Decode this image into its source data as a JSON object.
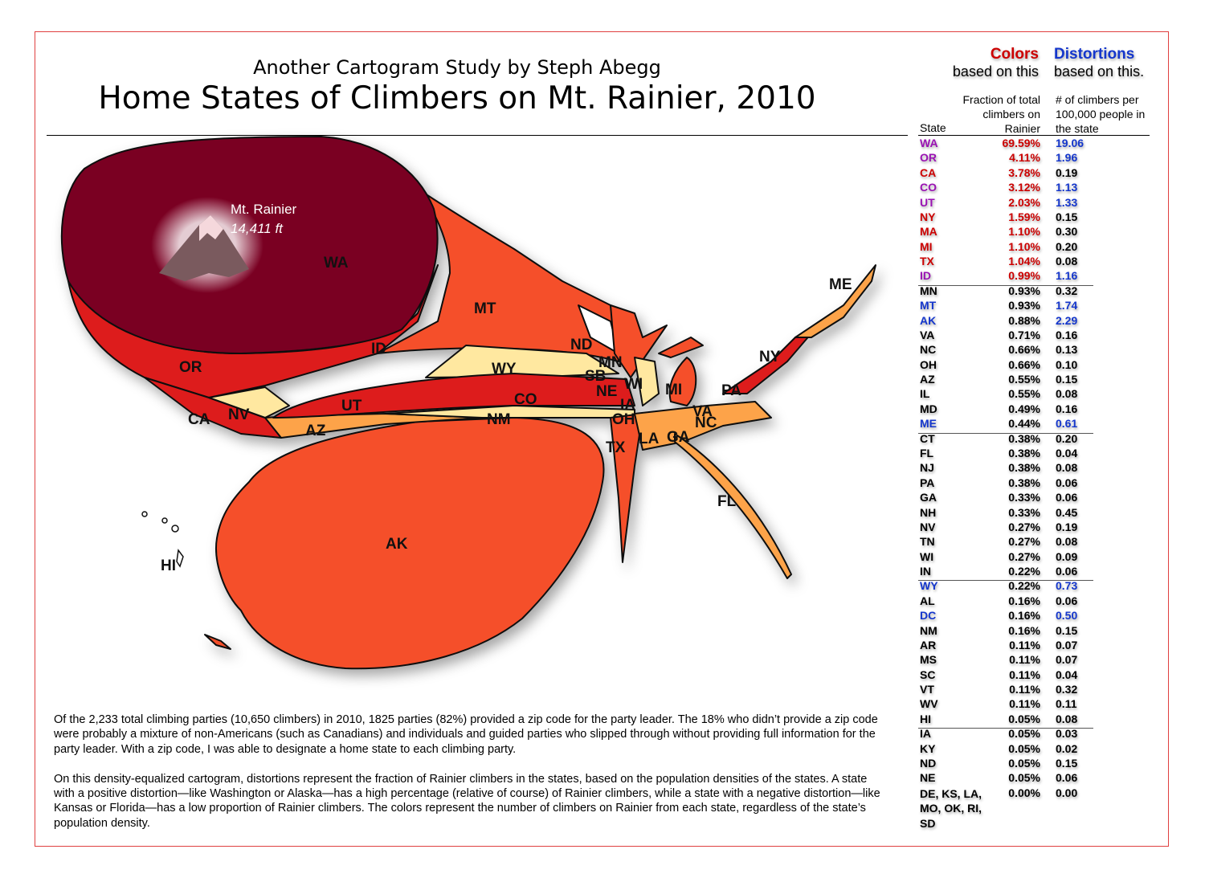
{
  "header": {
    "subtitle": "Another Cartogram Study by Steph Abegg",
    "title": "Home States of Climbers on Mt. Rainier, 2010"
  },
  "legend": {
    "colors_title": "Colors",
    "colors_sub": "based on this",
    "distortions_title": "Distortions",
    "distortions_sub": "based on this.",
    "col_state": "State",
    "col_fraction": "Fraction of total climbers on Rainier",
    "col_distortion": "# of climbers per 100,000 people in the state"
  },
  "colors": {
    "purple": "#9a12b3",
    "red": "#cc0000",
    "blue": "#1436cc",
    "black": "#000000",
    "frame": "#e04040"
  },
  "table": [
    {
      "state": "WA",
      "fraction": "69.59%",
      "per100k": "19.06",
      "sc": "purple",
      "fc": "red",
      "dc": "blue"
    },
    {
      "state": "OR",
      "fraction": "4.11%",
      "per100k": "1.96",
      "sc": "purple",
      "fc": "red",
      "dc": "blue"
    },
    {
      "state": "CA",
      "fraction": "3.78%",
      "per100k": "0.19",
      "sc": "red",
      "fc": "red",
      "dc": "black"
    },
    {
      "state": "CO",
      "fraction": "3.12%",
      "per100k": "1.13",
      "sc": "purple",
      "fc": "red",
      "dc": "blue"
    },
    {
      "state": "UT",
      "fraction": "2.03%",
      "per100k": "1.33",
      "sc": "purple",
      "fc": "red",
      "dc": "blue"
    },
    {
      "state": "NY",
      "fraction": "1.59%",
      "per100k": "0.15",
      "sc": "red",
      "fc": "red",
      "dc": "black"
    },
    {
      "state": "MA",
      "fraction": "1.10%",
      "per100k": "0.30",
      "sc": "red",
      "fc": "red",
      "dc": "black"
    },
    {
      "state": "MI",
      "fraction": "1.10%",
      "per100k": "0.20",
      "sc": "red",
      "fc": "red",
      "dc": "black"
    },
    {
      "state": "TX",
      "fraction": "1.04%",
      "per100k": "0.08",
      "sc": "red",
      "fc": "red",
      "dc": "black"
    },
    {
      "state": "ID",
      "fraction": "0.99%",
      "per100k": "1.16",
      "sc": "purple",
      "fc": "red",
      "dc": "blue"
    },
    {
      "state": "MN",
      "fraction": "0.93%",
      "per100k": "0.32",
      "sc": "black",
      "fc": "black",
      "dc": "black"
    },
    {
      "state": "MT",
      "fraction": "0.93%",
      "per100k": "1.74",
      "sc": "blue",
      "fc": "black",
      "dc": "blue"
    },
    {
      "state": "AK",
      "fraction": "0.88%",
      "per100k": "2.29",
      "sc": "blue",
      "fc": "black",
      "dc": "blue"
    },
    {
      "state": "VA",
      "fraction": "0.71%",
      "per100k": "0.16",
      "sc": "black",
      "fc": "black",
      "dc": "black"
    },
    {
      "state": "NC",
      "fraction": "0.66%",
      "per100k": "0.13",
      "sc": "black",
      "fc": "black",
      "dc": "black"
    },
    {
      "state": "OH",
      "fraction": "0.66%",
      "per100k": "0.10",
      "sc": "black",
      "fc": "black",
      "dc": "black"
    },
    {
      "state": "AZ",
      "fraction": "0.55%",
      "per100k": "0.15",
      "sc": "black",
      "fc": "black",
      "dc": "black"
    },
    {
      "state": "IL",
      "fraction": "0.55%",
      "per100k": "0.08",
      "sc": "black",
      "fc": "black",
      "dc": "black"
    },
    {
      "state": "MD",
      "fraction": "0.49%",
      "per100k": "0.16",
      "sc": "black",
      "fc": "black",
      "dc": "black"
    },
    {
      "state": "ME",
      "fraction": "0.44%",
      "per100k": "0.61",
      "sc": "blue",
      "fc": "black",
      "dc": "blue"
    },
    {
      "state": "CT",
      "fraction": "0.38%",
      "per100k": "0.20",
      "sc": "black",
      "fc": "black",
      "dc": "black"
    },
    {
      "state": "FL",
      "fraction": "0.38%",
      "per100k": "0.04",
      "sc": "black",
      "fc": "black",
      "dc": "black"
    },
    {
      "state": "NJ",
      "fraction": "0.38%",
      "per100k": "0.08",
      "sc": "black",
      "fc": "black",
      "dc": "black"
    },
    {
      "state": "PA",
      "fraction": "0.38%",
      "per100k": "0.06",
      "sc": "black",
      "fc": "black",
      "dc": "black"
    },
    {
      "state": "GA",
      "fraction": "0.33%",
      "per100k": "0.06",
      "sc": "black",
      "fc": "black",
      "dc": "black"
    },
    {
      "state": "NH",
      "fraction": "0.33%",
      "per100k": "0.45",
      "sc": "black",
      "fc": "black",
      "dc": "black"
    },
    {
      "state": "NV",
      "fraction": "0.27%",
      "per100k": "0.19",
      "sc": "black",
      "fc": "black",
      "dc": "black"
    },
    {
      "state": "TN",
      "fraction": "0.27%",
      "per100k": "0.08",
      "sc": "black",
      "fc": "black",
      "dc": "black"
    },
    {
      "state": "WI",
      "fraction": "0.27%",
      "per100k": "0.09",
      "sc": "black",
      "fc": "black",
      "dc": "black"
    },
    {
      "state": "IN",
      "fraction": "0.22%",
      "per100k": "0.06",
      "sc": "black",
      "fc": "black",
      "dc": "black"
    },
    {
      "state": "WY",
      "fraction": "0.22%",
      "per100k": "0.73",
      "sc": "blue",
      "fc": "black",
      "dc": "blue"
    },
    {
      "state": "AL",
      "fraction": "0.16%",
      "per100k": "0.06",
      "sc": "black",
      "fc": "black",
      "dc": "black"
    },
    {
      "state": "DC",
      "fraction": "0.16%",
      "per100k": "0.50",
      "sc": "blue",
      "fc": "black",
      "dc": "blue"
    },
    {
      "state": "NM",
      "fraction": "0.16%",
      "per100k": "0.15",
      "sc": "black",
      "fc": "black",
      "dc": "black"
    },
    {
      "state": "AR",
      "fraction": "0.11%",
      "per100k": "0.07",
      "sc": "black",
      "fc": "black",
      "dc": "black"
    },
    {
      "state": "MS",
      "fraction": "0.11%",
      "per100k": "0.07",
      "sc": "black",
      "fc": "black",
      "dc": "black"
    },
    {
      "state": "SC",
      "fraction": "0.11%",
      "per100k": "0.04",
      "sc": "black",
      "fc": "black",
      "dc": "black"
    },
    {
      "state": "VT",
      "fraction": "0.11%",
      "per100k": "0.32",
      "sc": "black",
      "fc": "black",
      "dc": "black"
    },
    {
      "state": "WV",
      "fraction": "0.11%",
      "per100k": "0.11",
      "sc": "black",
      "fc": "black",
      "dc": "black"
    },
    {
      "state": "HI",
      "fraction": "0.05%",
      "per100k": "0.08",
      "sc": "black",
      "fc": "black",
      "dc": "black"
    },
    {
      "state": "IA",
      "fraction": "0.05%",
      "per100k": "0.03",
      "sc": "black",
      "fc": "black",
      "dc": "black"
    },
    {
      "state": "KY",
      "fraction": "0.05%",
      "per100k": "0.02",
      "sc": "black",
      "fc": "black",
      "dc": "black"
    },
    {
      "state": "ND",
      "fraction": "0.05%",
      "per100k": "0.15",
      "sc": "black",
      "fc": "black",
      "dc": "black"
    },
    {
      "state": "NE",
      "fraction": "0.05%",
      "per100k": "0.06",
      "sc": "black",
      "fc": "black",
      "dc": "black"
    },
    {
      "state": "DE, KS, LA, MO, OK, RI, SD",
      "fraction": "0.00%",
      "per100k": "0.00",
      "sc": "black",
      "fc": "black",
      "dc": "black"
    }
  ],
  "group_breaks_after": [
    9,
    19,
    29,
    39
  ],
  "map": {
    "marker_name": "Mt. Rainier",
    "marker_elevation": "14,411 ft",
    "labels": [
      "WA",
      "OR",
      "ID",
      "MT",
      "WY",
      "UT",
      "CO",
      "NV",
      "CA",
      "AZ",
      "NM",
      "AK",
      "HI",
      "ND",
      "MN",
      "SB",
      "NE",
      "WI",
      "MI",
      "TX",
      "FL",
      "ME",
      "NY",
      "PA",
      "NC",
      "VA",
      "IA",
      "OH",
      "LA",
      "GA"
    ],
    "fill_colors": {
      "dark": "#7a0022",
      "red": "#dd1c1c",
      "orange": "#f5502a",
      "light_orange": "#fda348",
      "pale": "#ffe8a0",
      "white": "#ffffff",
      "mountain": "#7a5a5e"
    }
  },
  "description": [
    "Of the 2,233 total climbing parties (10,650 climbers) in 2010, 1825 parties (82%) provided a zip code for the party leader. The 18% who didn’t provide a zip code were probably a mixture of non-Americans (such as Canadians) and individuals and guided parties who slipped through without providing full information for the party leader. With a zip code, I was able to designate a home state to each climbing party.",
    "On this density-equalized cartogram, distortions represent the fraction of Rainier climbers in the states, based on the population densities of the states. A state with a positive distortion—like Washington or Alaska—has a high percentage (relative of course) of Rainier climbers, while a state with a negative distortion—like Kansas or Florida—has a low proportion of Rainier climbers. The colors represent the number of climbers on Rainier from each state, regardless of the state’s population density."
  ]
}
